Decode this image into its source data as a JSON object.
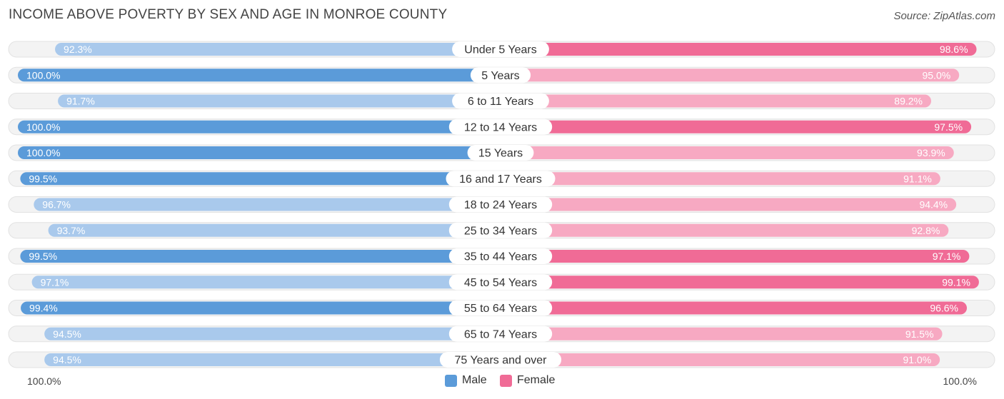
{
  "title": "INCOME ABOVE POVERTY BY SEX AND AGE IN MONROE COUNTY",
  "source": "Source: ZipAtlas.com",
  "axis": {
    "left_label": "100.0%",
    "right_label": "100.0%"
  },
  "colors": {
    "male_strong": "#5b9bd9",
    "male_light": "#a9c9ec",
    "female_strong": "#f06b96",
    "female_light": "#f7a9c2",
    "row_bg": "#f1f1f1"
  },
  "legend": [
    {
      "label": "Male",
      "color": "#5b9bd9"
    },
    {
      "label": "Female",
      "color": "#f06b96"
    }
  ],
  "chart_data": {
    "type": "bar",
    "orientation": "diverging-horizontal",
    "title": "INCOME ABOVE POVERTY BY SEX AND AGE IN MONROE COUNTY",
    "categories": [
      "Under 5 Years",
      "5 Years",
      "6 to 11 Years",
      "12 to 14 Years",
      "15 Years",
      "16 and 17 Years",
      "18 to 24 Years",
      "25 to 34 Years",
      "35 to 44 Years",
      "45 to 54 Years",
      "55 to 64 Years",
      "65 to 74 Years",
      "75 Years and over"
    ],
    "series": [
      {
        "name": "Male",
        "values": [
          92.3,
          100.0,
          91.7,
          100.0,
          100.0,
          99.5,
          96.7,
          93.7,
          99.5,
          97.1,
          99.4,
          94.5,
          94.5
        ],
        "labels": [
          "92.3%",
          "100.0%",
          "91.7%",
          "100.0%",
          "100.0%",
          "99.5%",
          "96.7%",
          "93.7%",
          "99.5%",
          "97.1%",
          "99.4%",
          "94.5%",
          "94.5%"
        ]
      },
      {
        "name": "Female",
        "values": [
          98.6,
          95.0,
          89.2,
          97.5,
          93.9,
          91.1,
          94.4,
          92.8,
          97.1,
          99.1,
          96.6,
          91.5,
          91.0
        ],
        "labels": [
          "98.6%",
          "95.0%",
          "89.2%",
          "97.5%",
          "93.9%",
          "91.1%",
          "94.4%",
          "92.8%",
          "97.1%",
          "99.1%",
          "96.6%",
          "91.5%",
          "91.0%"
        ]
      }
    ],
    "xlim": [
      0,
      100
    ],
    "legend_position": "bottom-center"
  }
}
